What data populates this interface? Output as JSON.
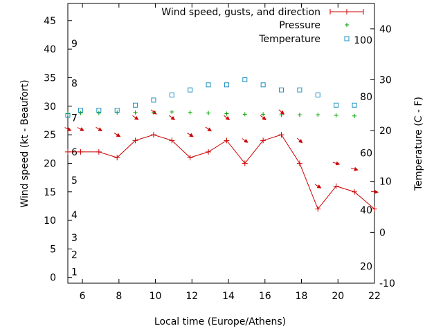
{
  "chart_data": {
    "type": "line",
    "xlabel": "Local time (Europe/Athens)",
    "ylabel_left": "Wind speed (kt - Beaufort)",
    "ylabel_right": "Temperature (C - F)",
    "xlim": [
      5.2,
      22
    ],
    "ylim_left": [
      -1,
      48
    ],
    "ylim_right": [
      -10,
      45
    ],
    "grid": false,
    "legend_position": "top-right",
    "x_ticks": [
      6,
      8,
      10,
      12,
      14,
      16,
      18,
      20,
      22
    ],
    "y_left_ticks": [
      0,
      5,
      10,
      15,
      20,
      25,
      30,
      35,
      40,
      45
    ],
    "y_right_ticks": [
      -10,
      0,
      10,
      20,
      30,
      40
    ],
    "beaufort_labels": [
      {
        "label": "1",
        "kt": 1
      },
      {
        "label": "2",
        "kt": 4
      },
      {
        "label": "3",
        "kt": 7
      },
      {
        "label": "4",
        "kt": 11
      },
      {
        "label": "5",
        "kt": 17
      },
      {
        "label": "6",
        "kt": 22
      },
      {
        "label": "7",
        "kt": 28
      },
      {
        "label": "8",
        "kt": 34
      },
      {
        "label": "9",
        "kt": 41
      }
    ],
    "fahrenheit_labels": [
      {
        "label": "20",
        "c": -6.7
      },
      {
        "label": "40",
        "c": 4.4
      },
      {
        "label": "60",
        "c": 15.6
      },
      {
        "label": "80",
        "c": 26.7
      },
      {
        "label": "100",
        "c": 37.8
      }
    ],
    "series": [
      {
        "name": "Wind speed, gusts, and direction",
        "color": "#cc0000",
        "axis": "left",
        "x": [
          5.2,
          5.9,
          6.9,
          7.9,
          8.9,
          9.9,
          10.9,
          11.9,
          12.9,
          13.9,
          14.9,
          15.9,
          16.9,
          17.9,
          18.9,
          19.9,
          20.9,
          22.0
        ],
        "y": [
          22,
          22,
          22,
          21,
          24,
          25,
          24,
          21,
          22,
          24,
          20,
          24,
          25,
          20,
          12,
          16,
          15,
          12
        ]
      },
      {
        "name": "Pressure",
        "color": "#00a000",
        "axis": "left",
        "x": [
          5.2,
          5.9,
          6.9,
          7.9,
          8.9,
          9.9,
          10.9,
          11.9,
          12.9,
          13.9,
          14.9,
          15.9,
          16.9,
          17.9,
          18.9,
          19.9,
          20.9
        ],
        "y": [
          28.7,
          28.8,
          28.8,
          28.9,
          28.9,
          28.9,
          29.0,
          28.9,
          28.8,
          28.7,
          28.6,
          28.6,
          28.5,
          28.5,
          28.5,
          28.4,
          28.3
        ]
      },
      {
        "name": "Temperature",
        "color": "#1a8fbf",
        "axis": "right",
        "x": [
          5.2,
          5.9,
          6.9,
          7.9,
          8.9,
          9.9,
          10.9,
          11.9,
          12.9,
          13.9,
          14.9,
          15.9,
          16.9,
          17.9,
          18.9,
          19.9,
          20.9
        ],
        "y": [
          23,
          24,
          24,
          24,
          25,
          26,
          27,
          28,
          29,
          29,
          30,
          29,
          28,
          28,
          27,
          25,
          25
        ]
      }
    ],
    "direction_arrows": {
      "color": "#cc0000",
      "points": [
        {
          "x": 5.2,
          "y": 26,
          "dx": 1,
          "dy": 0.5
        },
        {
          "x": 5.9,
          "y": 26,
          "dx": 1,
          "dy": 0.5
        },
        {
          "x": 6.9,
          "y": 26,
          "dx": 1,
          "dy": 0.6
        },
        {
          "x": 7.9,
          "y": 25,
          "dx": 1,
          "dy": 0.6
        },
        {
          "x": 8.9,
          "y": 28,
          "dx": 1,
          "dy": 0.7
        },
        {
          "x": 9.9,
          "y": 29,
          "dx": 1,
          "dy": 0.8
        },
        {
          "x": 10.9,
          "y": 28,
          "dx": 1,
          "dy": 0.8
        },
        {
          "x": 11.9,
          "y": 25,
          "dx": 1,
          "dy": 0.6
        },
        {
          "x": 12.9,
          "y": 26,
          "dx": 1,
          "dy": 0.7
        },
        {
          "x": 13.9,
          "y": 28,
          "dx": 1,
          "dy": 0.8
        },
        {
          "x": 14.9,
          "y": 24,
          "dx": 1,
          "dy": 0.7
        },
        {
          "x": 15.9,
          "y": 28,
          "dx": 1,
          "dy": 0.8
        },
        {
          "x": 16.9,
          "y": 29,
          "dx": 1,
          "dy": 0.9
        },
        {
          "x": 17.9,
          "y": 24,
          "dx": 1,
          "dy": 0.9
        },
        {
          "x": 18.9,
          "y": 16,
          "dx": 1,
          "dy": 0.6
        },
        {
          "x": 19.9,
          "y": 20,
          "dx": 1,
          "dy": 0.3
        },
        {
          "x": 20.9,
          "y": 19,
          "dx": 1,
          "dy": 0.3
        },
        {
          "x": 22.0,
          "y": 15,
          "dx": 1,
          "dy": 0.1
        }
      ]
    }
  }
}
